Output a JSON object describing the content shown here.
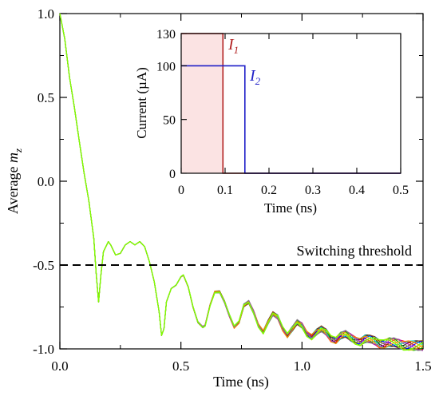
{
  "chart_data": [
    {
      "type": "line",
      "title": "",
      "xlabel": "Time (ns)",
      "ylabel_text": "Average ",
      "ylabel_var": "m",
      "ylabel_sub": "z",
      "xlim": [
        0.0,
        1.5
      ],
      "ylim": [
        -1.0,
        1.0
      ],
      "xticks": [
        0.0,
        0.5,
        1.0,
        1.5
      ],
      "xtick_labels": [
        "0.0",
        "0.5",
        "1.0",
        "1.5"
      ],
      "yticks": [
        -1.0,
        -0.5,
        0.0,
        0.5,
        1.0
      ],
      "ytick_labels": [
        "-1.0",
        "-0.5",
        "0.0",
        "0.5",
        "1.0"
      ],
      "threshold": {
        "y": -0.5,
        "label": "Switching threshold"
      },
      "series_colors": [
        "#000000",
        "#ff0000",
        "#00c000",
        "#0000ff",
        "#00c8c8",
        "#c000c0",
        "#c8c800",
        "#8b4513",
        "#ff8c00",
        "#808080",
        "#7fff00"
      ],
      "x": [
        0.0,
        0.02,
        0.04,
        0.06,
        0.08,
        0.1,
        0.12,
        0.14,
        0.15,
        0.16,
        0.17,
        0.18,
        0.2,
        0.21,
        0.23,
        0.25,
        0.27,
        0.29,
        0.31,
        0.33,
        0.35,
        0.37,
        0.39,
        0.41,
        0.42,
        0.43,
        0.44,
        0.46,
        0.48,
        0.5,
        0.51,
        0.53,
        0.55,
        0.57,
        0.59,
        0.6,
        0.62,
        0.64,
        0.66,
        0.68,
        0.7,
        0.72,
        0.74,
        0.76,
        0.78,
        0.8,
        0.82,
        0.84,
        0.86,
        0.88,
        0.9,
        0.92,
        0.94,
        0.96,
        0.98,
        1.0,
        1.02,
        1.04,
        1.06,
        1.08,
        1.1,
        1.12,
        1.14,
        1.16,
        1.18,
        1.2,
        1.22,
        1.24,
        1.26,
        1.28,
        1.3,
        1.32,
        1.34,
        1.36,
        1.38,
        1.4,
        1.42,
        1.44,
        1.46,
        1.48,
        1.5
      ],
      "y": [
        1.0,
        0.85,
        0.62,
        0.44,
        0.24,
        0.05,
        -0.12,
        -0.34,
        -0.55,
        -0.72,
        -0.55,
        -0.42,
        -0.36,
        -0.38,
        -0.44,
        -0.43,
        -0.38,
        -0.36,
        -0.38,
        -0.36,
        -0.39,
        -0.48,
        -0.6,
        -0.78,
        -0.92,
        -0.88,
        -0.72,
        -0.64,
        -0.62,
        -0.57,
        -0.56,
        -0.63,
        -0.75,
        -0.84,
        -0.87,
        -0.86,
        -0.74,
        -0.66,
        -0.66,
        -0.72,
        -0.8,
        -0.87,
        -0.84,
        -0.74,
        -0.72,
        -0.78,
        -0.86,
        -0.9,
        -0.84,
        -0.79,
        -0.81,
        -0.88,
        -0.92,
        -0.88,
        -0.84,
        -0.86,
        -0.91,
        -0.93,
        -0.9,
        -0.88,
        -0.9,
        -0.94,
        -0.95,
        -0.92,
        -0.91,
        -0.93,
        -0.95,
        -0.96,
        -0.94,
        -0.94,
        -0.95,
        -0.97,
        -0.97,
        -0.96,
        -0.96,
        -0.97,
        -0.98,
        -0.98,
        -0.98,
        -0.98,
        -0.98
      ]
    },
    {
      "type": "line",
      "title": "",
      "xlabel": "Time (ns)",
      "ylabel": "Current (µA)",
      "xlim": [
        0.0,
        0.5
      ],
      "ylim": [
        0,
        130
      ],
      "xticks": [
        0.0,
        0.1,
        0.2,
        0.3,
        0.4,
        0.5
      ],
      "xtick_labels": [
        "0",
        "0.1",
        "0.2",
        "0.3",
        "0.4",
        "0.5"
      ],
      "yticks": [
        0,
        50,
        100,
        130
      ],
      "ytick_labels": [
        "0",
        "50",
        "100",
        "130"
      ],
      "series": [
        {
          "name_main": "I",
          "name_sub": "1",
          "color": "#b22222",
          "x": [
            0.0,
            0.095,
            0.095,
            0.5
          ],
          "values": [
            130,
            130,
            0,
            0
          ]
        },
        {
          "name_main": "I",
          "name_sub": "2",
          "color": "#1f1fc8",
          "x": [
            0.0,
            0.145,
            0.145,
            0.5
          ],
          "values": [
            100,
            100,
            0,
            0
          ]
        }
      ]
    }
  ]
}
